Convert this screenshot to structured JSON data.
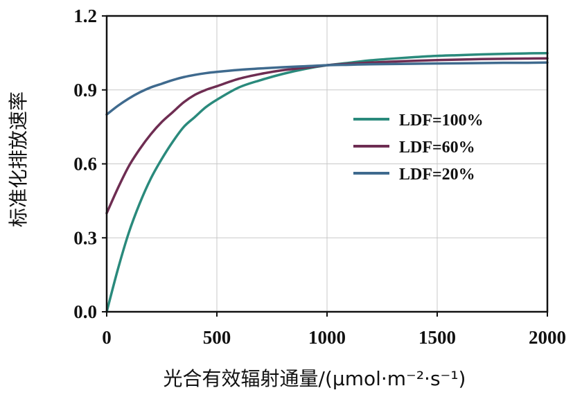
{
  "chart_data": {
    "type": "line",
    "title": "",
    "xlabel": "光合有效辐射通量/(μmol·m⁻²·s⁻¹)",
    "ylabel": "标准化排放速率",
    "xlim": [
      0,
      2000
    ],
    "ylim": [
      0.0,
      1.2
    ],
    "xticks": [
      0,
      500,
      1000,
      1500,
      2000
    ],
    "xtick_labels": [
      "0",
      "500",
      "1000",
      "1500",
      "2000"
    ],
    "yticks": [
      0.0,
      0.3,
      0.6,
      0.9,
      1.2
    ],
    "ytick_labels": [
      "0.0",
      "0.3",
      "0.6",
      "0.9",
      "1.2"
    ],
    "grid": true,
    "legend_position": "center-right",
    "x": [
      0,
      50,
      100,
      150,
      200,
      250,
      300,
      350,
      400,
      450,
      500,
      600,
      700,
      800,
      900,
      1000,
      1100,
      1200,
      1300,
      1400,
      1500,
      1600,
      1700,
      1800,
      1900,
      2000
    ],
    "series": [
      {
        "name": "LDF=100%",
        "color": "#2a8a7c",
        "values": [
          0.0,
          0.17,
          0.32,
          0.44,
          0.54,
          0.62,
          0.69,
          0.75,
          0.79,
          0.83,
          0.86,
          0.91,
          0.94,
          0.965,
          0.985,
          1.0,
          1.01,
          1.02,
          1.027,
          1.033,
          1.038,
          1.041,
          1.044,
          1.046,
          1.048,
          1.049
        ]
      },
      {
        "name": "LDF=60%",
        "color": "#6e2d52",
        "values": [
          0.4,
          0.5,
          0.59,
          0.66,
          0.72,
          0.77,
          0.81,
          0.85,
          0.88,
          0.9,
          0.915,
          0.945,
          0.965,
          0.98,
          0.99,
          1.0,
          1.006,
          1.011,
          1.015,
          1.018,
          1.021,
          1.023,
          1.025,
          1.026,
          1.027,
          1.028
        ]
      },
      {
        "name": "LDF=20%",
        "color": "#3f6a8e",
        "values": [
          0.8,
          0.835,
          0.865,
          0.89,
          0.91,
          0.925,
          0.94,
          0.952,
          0.961,
          0.968,
          0.973,
          0.981,
          0.987,
          0.992,
          0.996,
          1.0,
          1.002,
          1.004,
          1.005,
          1.006,
          1.007,
          1.008,
          1.009,
          1.01,
          1.01,
          1.011
        ]
      }
    ]
  }
}
